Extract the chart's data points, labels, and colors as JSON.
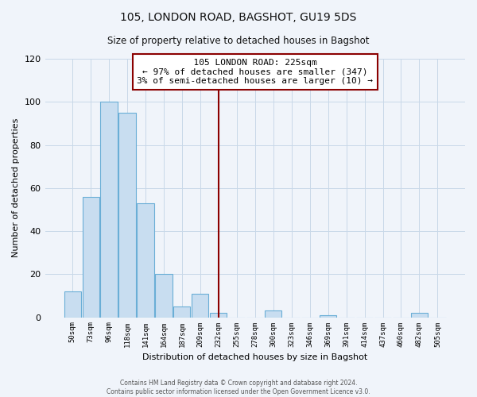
{
  "title": "105, LONDON ROAD, BAGSHOT, GU19 5DS",
  "subtitle": "Size of property relative to detached houses in Bagshot",
  "xlabel": "Distribution of detached houses by size in Bagshot",
  "ylabel": "Number of detached properties",
  "bar_labels": [
    "50sqm",
    "73sqm",
    "96sqm",
    "118sqm",
    "141sqm",
    "164sqm",
    "187sqm",
    "209sqm",
    "232sqm",
    "255sqm",
    "278sqm",
    "300sqm",
    "323sqm",
    "346sqm",
    "369sqm",
    "391sqm",
    "414sqm",
    "437sqm",
    "460sqm",
    "482sqm",
    "505sqm"
  ],
  "bar_values": [
    12,
    56,
    100,
    95,
    53,
    20,
    5,
    11,
    2,
    0,
    0,
    3,
    0,
    0,
    1,
    0,
    0,
    0,
    0,
    2,
    0
  ],
  "bar_color": "#c8ddf0",
  "bar_edge_color": "#6aaed6",
  "vline_index": 8,
  "vline_color": "#8b0000",
  "ylim": [
    0,
    120
  ],
  "yticks": [
    0,
    20,
    40,
    60,
    80,
    100,
    120
  ],
  "annotation_title": "105 LONDON ROAD: 225sqm",
  "annotation_line1": "← 97% of detached houses are smaller (347)",
  "annotation_line2": "3% of semi-detached houses are larger (10) →",
  "annotation_box_color": "#ffffff",
  "annotation_box_edge": "#8b0000",
  "footer1": "Contains HM Land Registry data © Crown copyright and database right 2024.",
  "footer2": "Contains public sector information licensed under the Open Government Licence v3.0.",
  "background_color": "#f0f4fa",
  "grid_color": "#c8d8e8"
}
